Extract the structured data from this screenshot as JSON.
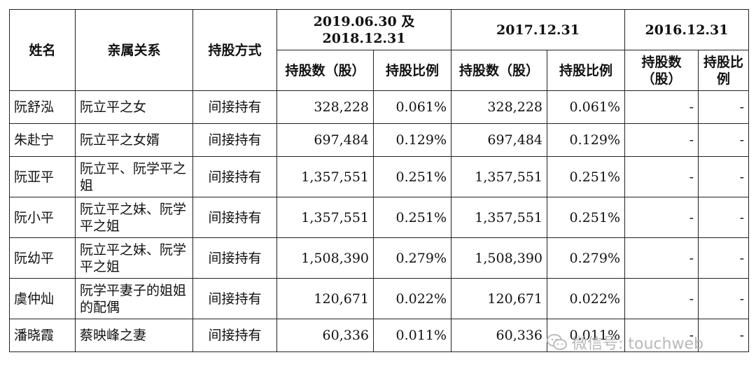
{
  "header": {
    "name": "姓名",
    "relation": "亲属关系",
    "method": "持股方式",
    "periods": [
      "2019.06.30 及 2018.12.31",
      "2017.12.31",
      "2016.12.31"
    ],
    "shares": "持股数（股）",
    "ratio": "持股比例"
  },
  "rows": [
    {
      "name": "阮舒泓",
      "relation": "阮立平之女",
      "method": "间接持有",
      "s1": "328,228",
      "r1": "0.061%",
      "s2": "328,228",
      "r2": "0.061%",
      "s3": "-",
      "r3": "-"
    },
    {
      "name": "朱赴宁",
      "relation": "阮立平之女婿",
      "method": "间接持有",
      "s1": "697,484",
      "r1": "0.129%",
      "s2": "697,484",
      "r2": "0.129%",
      "s3": "-",
      "r3": "-"
    },
    {
      "name": "阮亚平",
      "relation": "阮立平、阮学平之姐",
      "method": "间接持有",
      "s1": "1,357,551",
      "r1": "0.251%",
      "s2": "1,357,551",
      "r2": "0.251%",
      "s3": "-",
      "r3": "-"
    },
    {
      "name": "阮小平",
      "relation": "阮立平之妹、阮学平之姐",
      "method": "间接持有",
      "s1": "1,357,551",
      "r1": "0.251%",
      "s2": "1,357,551",
      "r2": "0.251%",
      "s3": "-",
      "r3": "-"
    },
    {
      "name": "阮幼平",
      "relation": "阮立平之妹、阮学平之姐",
      "method": "间接持有",
      "s1": "1,508,390",
      "r1": "0.279%",
      "s2": "1,508,390",
      "r2": "0.279%",
      "s3": "-",
      "r3": "-"
    },
    {
      "name": "虞仲灿",
      "relation": "阮学平妻子的姐姐的配偶",
      "method": "间接持有",
      "s1": "120,671",
      "r1": "0.022%",
      "s2": "120,671",
      "r2": "0.022%",
      "s3": "-",
      "r3": "-"
    },
    {
      "name": "潘晓霞",
      "relation": "蔡映峰之妻",
      "method": "间接持有",
      "s1": "60,336",
      "r1": "0.011%",
      "s2": "60,336",
      "r2": "0.011%",
      "s3": "-",
      "r3": "-"
    }
  ],
  "watermark": {
    "text": "微信号: touchweb",
    "icon": "wechat-icon"
  }
}
